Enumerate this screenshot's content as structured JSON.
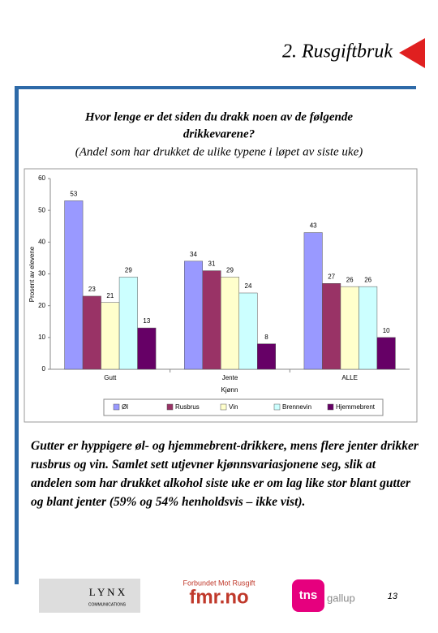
{
  "header": {
    "title": "2. Rusgiftbruk"
  },
  "chart_data": {
    "type": "bar",
    "title": "Hvor lenge er det siden du drakk noen av de følgende drikkevarene?",
    "subtitle": "(Andel som har drukket de ulike typene i løpet av siste uke)",
    "ylabel": "Prosent av elevene",
    "xlabel": "Kjønn",
    "categories": [
      "Gutt",
      "Jente",
      "ALLE"
    ],
    "series": [
      {
        "name": "Øl",
        "color": "#9999ff",
        "values": [
          53,
          34,
          43
        ]
      },
      {
        "name": "Rusbrus",
        "color": "#993366",
        "values": [
          23,
          31,
          27
        ]
      },
      {
        "name": "Vin",
        "color": "#ffffcc",
        "values": [
          21,
          29,
          26
        ]
      },
      {
        "name": "Brennevin",
        "color": "#ccffff",
        "values": [
          29,
          24,
          26
        ]
      },
      {
        "name": "Hjemmebrent",
        "color": "#660066",
        "values": [
          13,
          8,
          10
        ]
      }
    ],
    "ylim": [
      0,
      60
    ],
    "yticks": [
      0,
      10,
      20,
      30,
      40,
      50,
      60
    ],
    "legend": "bottom"
  },
  "body_text": "Gutter er hyppigere øl- og hjemmebrent-drikkere, mens flere jenter drikker rusbrus og vin. Samlet sett utjevner kjønnsvariasjonene seg, slik at andelen som har drukket alkohol siste uke er om lag like stor blant gutter og blant jenter (59% og 54% henholdsvis – ikke vist).",
  "footer": {
    "lynx": "L Y N X",
    "lynx_sub": "COMMUNICATIONS",
    "fmr_top": "Forbundet Mot Rusgift",
    "fmr": "fmr.no",
    "tns": "tns",
    "gallup": "gallup",
    "page_number": 13
  }
}
